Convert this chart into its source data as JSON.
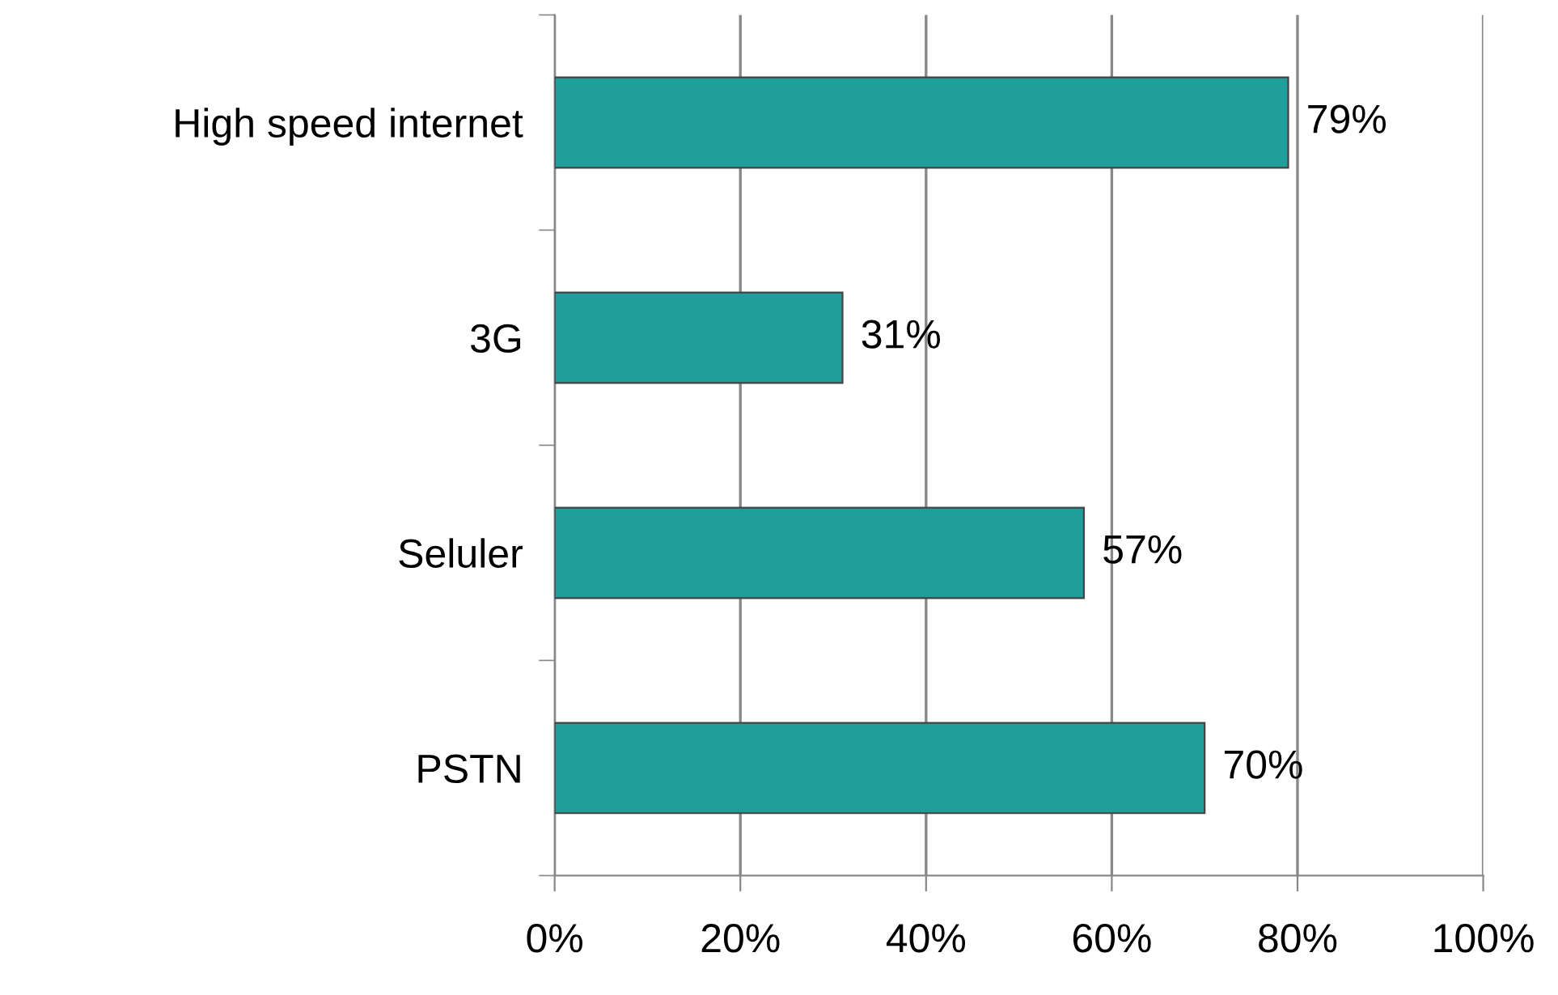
{
  "chart_data": {
    "type": "bar",
    "orientation": "horizontal",
    "categories": [
      "High speed internet",
      "3G",
      "Seluler",
      "PSTN"
    ],
    "values": [
      79,
      31,
      57,
      70
    ],
    "value_labels": [
      "79%",
      "31%",
      "57%",
      "70%"
    ],
    "color": "#1f9e9b",
    "xlim": [
      0,
      100
    ],
    "xticks": [
      {
        "value": 0,
        "label": "0%"
      },
      {
        "value": 20,
        "label": "20%"
      },
      {
        "value": 40,
        "label": "40%"
      },
      {
        "value": 60,
        "label": "60%"
      },
      {
        "value": 80,
        "label": "80%"
      },
      {
        "value": 100,
        "label": "100%"
      }
    ],
    "grid": "x",
    "legend": false
  }
}
